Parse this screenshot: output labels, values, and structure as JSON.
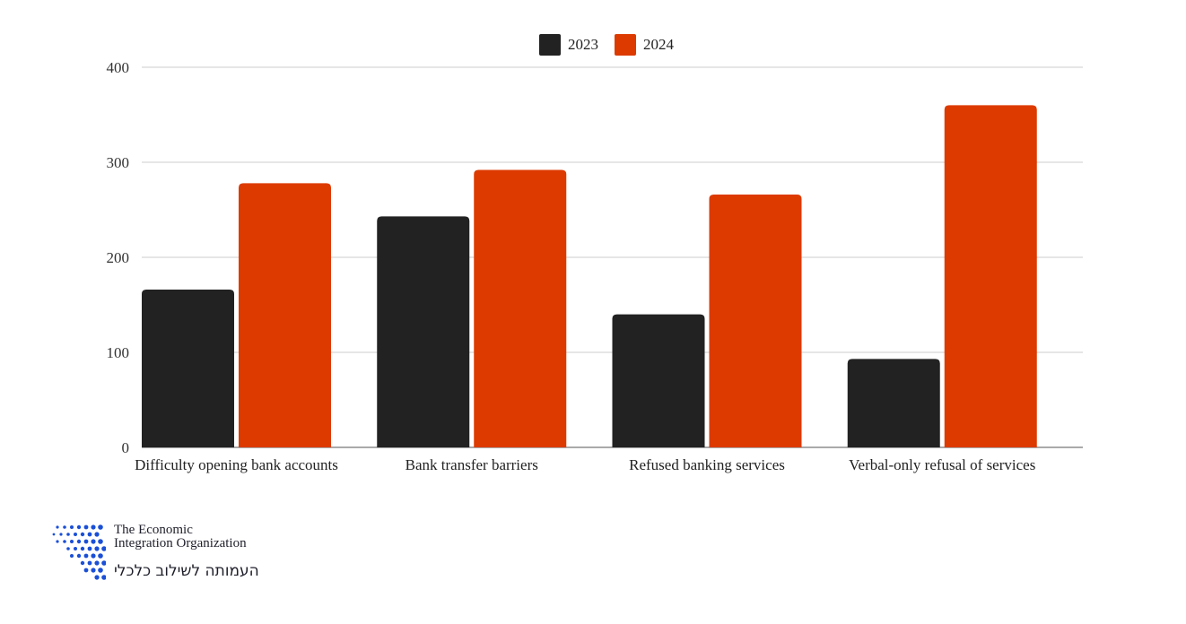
{
  "chart_data": {
    "type": "bar",
    "categories": [
      "Difficulty opening bank accounts",
      "Bank transfer barriers",
      "Refused banking services",
      "Verbal-only refusal of services"
    ],
    "series": [
      {
        "name": "2023",
        "color": "#222222",
        "values": [
          166,
          243,
          140,
          93
        ]
      },
      {
        "name": "2024",
        "color": "#dd3a00",
        "values": [
          278,
          292,
          266,
          360
        ]
      }
    ],
    "title": "",
    "xlabel": "",
    "ylabel": "",
    "ylim": [
      0,
      400
    ],
    "yticks": [
      "0",
      "100",
      "200",
      "300",
      "400"
    ],
    "grid": true,
    "legend_position": "top-center"
  },
  "logo": {
    "line1": "The Economic",
    "line2": "Integration Organization",
    "hebrew": "העמותה לשילוב כלכלי",
    "dot_color": "#1a4fd6"
  }
}
